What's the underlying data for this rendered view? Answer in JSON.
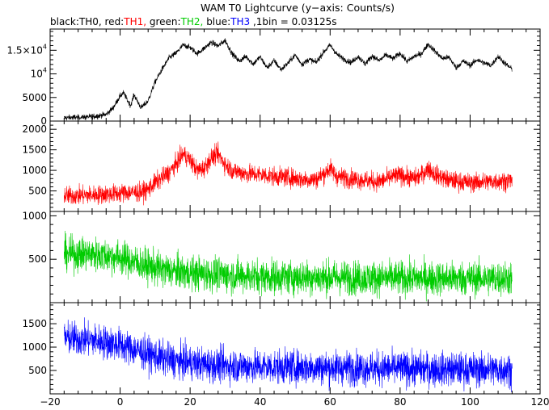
{
  "chart_data": {
    "type": "line",
    "title": "WAM T0 Lightcurve (y−axis: Counts/s)",
    "subtitle_parts": [
      {
        "text": "black:TH0, ",
        "color": "#000000"
      },
      {
        "text": "red:",
        "color": "#000000"
      },
      {
        "text": "TH1, ",
        "color": "#ff0000"
      },
      {
        "text": "green:",
        "color": "#000000"
      },
      {
        "text": "TH2, ",
        "color": "#00cc00"
      },
      {
        "text": "blue:",
        "color": "#000000"
      },
      {
        "text": "TH3 ",
        "color": "#0000ff"
      },
      {
        "text": ",1bin = 0.03125s",
        "color": "#000000"
      }
    ],
    "xlim": [
      -20,
      120
    ],
    "x_ticks": [
      -20,
      0,
      20,
      40,
      60,
      80,
      100,
      120
    ],
    "x_tick_labels": [
      "−20",
      "0",
      "20",
      "40",
      "60",
      "80",
      "100",
      "120"
    ],
    "x_data_range": [
      -16,
      112
    ],
    "grid": false,
    "panels": [
      {
        "series": "TH0",
        "color": "#000000",
        "ylim": [
          0,
          19500
        ],
        "y_ticks": [
          0,
          5000,
          10000,
          15000
        ],
        "y_tick_labels": [
          "0",
          "5000",
          "10^4",
          "1.5×10^4"
        ],
        "profile": [
          [
            -16,
            700
          ],
          [
            -8,
            900
          ],
          [
            -4,
            1400
          ],
          [
            -2,
            2800
          ],
          [
            0,
            5300
          ],
          [
            1,
            6000
          ],
          [
            2,
            4500
          ],
          [
            3,
            3300
          ],
          [
            4,
            5600
          ],
          [
            5,
            4100
          ],
          [
            6,
            2800
          ],
          [
            8,
            4300
          ],
          [
            10,
            8300
          ],
          [
            12,
            11000
          ],
          [
            14,
            13400
          ],
          [
            16,
            14400
          ],
          [
            18,
            16100
          ],
          [
            20,
            15600
          ],
          [
            22,
            14300
          ],
          [
            24,
            15400
          ],
          [
            26,
            16700
          ],
          [
            28,
            15900
          ],
          [
            30,
            17100
          ],
          [
            32,
            14300
          ],
          [
            34,
            12700
          ],
          [
            36,
            13700
          ],
          [
            38,
            12100
          ],
          [
            40,
            13600
          ],
          [
            42,
            11300
          ],
          [
            44,
            12800
          ],
          [
            46,
            10900
          ],
          [
            48,
            12300
          ],
          [
            50,
            14000
          ],
          [
            52,
            12000
          ],
          [
            54,
            13100
          ],
          [
            56,
            12400
          ],
          [
            58,
            14500
          ],
          [
            60,
            16100
          ],
          [
            62,
            14100
          ],
          [
            64,
            13100
          ],
          [
            66,
            12400
          ],
          [
            68,
            13700
          ],
          [
            70,
            12100
          ],
          [
            72,
            13800
          ],
          [
            74,
            12800
          ],
          [
            76,
            14000
          ],
          [
            78,
            13200
          ],
          [
            80,
            14400
          ],
          [
            82,
            12600
          ],
          [
            84,
            13700
          ],
          [
            86,
            14200
          ],
          [
            88,
            16300
          ],
          [
            90,
            14800
          ],
          [
            92,
            13300
          ],
          [
            94,
            13500
          ],
          [
            96,
            11300
          ],
          [
            98,
            12700
          ],
          [
            100,
            11800
          ],
          [
            102,
            13000
          ],
          [
            104,
            12300
          ],
          [
            106,
            11800
          ],
          [
            108,
            13700
          ],
          [
            110,
            12200
          ],
          [
            112,
            11000
          ]
        ],
        "noise": 900
      },
      {
        "series": "TH1",
        "color": "#ff0000",
        "ylim": [
          0,
          2200
        ],
        "y_ticks": [
          500,
          1000,
          1500,
          2000
        ],
        "y_tick_labels": [
          "500",
          "1000",
          "1500",
          "2000"
        ],
        "profile": [
          [
            -16,
            380
          ],
          [
            -8,
            400
          ],
          [
            -2,
            430
          ],
          [
            2,
            460
          ],
          [
            6,
            470
          ],
          [
            8,
            540
          ],
          [
            10,
            700
          ],
          [
            14,
            950
          ],
          [
            16,
            1150
          ],
          [
            18,
            1400
          ],
          [
            20,
            1250
          ],
          [
            22,
            1000
          ],
          [
            24,
            1050
          ],
          [
            26,
            1300
          ],
          [
            28,
            1400
          ],
          [
            30,
            1150
          ],
          [
            32,
            1000
          ],
          [
            36,
            920
          ],
          [
            40,
            900
          ],
          [
            44,
            850
          ],
          [
            48,
            830
          ],
          [
            52,
            780
          ],
          [
            56,
            780
          ],
          [
            58,
            900
          ],
          [
            60,
            1050
          ],
          [
            62,
            850
          ],
          [
            66,
            800
          ],
          [
            70,
            760
          ],
          [
            74,
            720
          ],
          [
            78,
            850
          ],
          [
            80,
            880
          ],
          [
            84,
            800
          ],
          [
            86,
            880
          ],
          [
            88,
            1050
          ],
          [
            90,
            900
          ],
          [
            94,
            760
          ],
          [
            100,
            700
          ],
          [
            106,
            730
          ],
          [
            112,
            760
          ]
        ],
        "noise": 350
      },
      {
        "series": "TH2",
        "color": "#00cc00",
        "ylim": [
          0,
          1050
        ],
        "y_ticks": [
          500,
          1000
        ],
        "y_tick_labels": [
          "500",
          "1000"
        ],
        "profile": [
          [
            -16,
            560
          ],
          [
            -8,
            560
          ],
          [
            0,
            520
          ],
          [
            4,
            470
          ],
          [
            8,
            420
          ],
          [
            12,
            380
          ],
          [
            20,
            340
          ],
          [
            30,
            320
          ],
          [
            40,
            300
          ],
          [
            60,
            290
          ],
          [
            80,
            280
          ],
          [
            100,
            280
          ],
          [
            112,
            280
          ]
        ],
        "noise": 300
      },
      {
        "series": "TH3",
        "color": "#0000ff",
        "ylim": [
          0,
          1950
        ],
        "y_ticks": [
          500,
          1000,
          1500
        ],
        "y_tick_labels": [
          "500",
          "1000",
          "1500"
        ],
        "profile": [
          [
            -16,
            1200
          ],
          [
            -8,
            1150
          ],
          [
            0,
            1050
          ],
          [
            4,
            950
          ],
          [
            8,
            850
          ],
          [
            12,
            760
          ],
          [
            18,
            680
          ],
          [
            26,
            620
          ],
          [
            40,
            580
          ],
          [
            60,
            560
          ],
          [
            80,
            540
          ],
          [
            100,
            520
          ],
          [
            112,
            520
          ]
        ],
        "noise": 550
      }
    ]
  }
}
